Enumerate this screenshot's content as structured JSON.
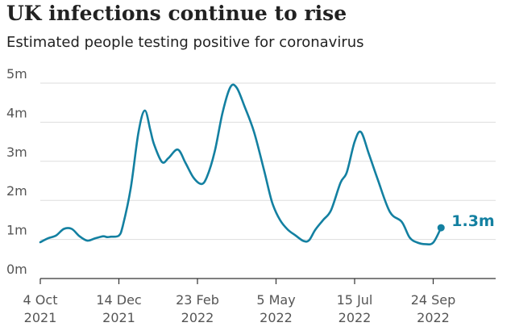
{
  "header": {
    "title": "UK infections continue to rise",
    "subtitle": "Estimated people testing positive for coronavirus"
  },
  "chart_data": {
    "type": "line",
    "title": "UK infections continue to rise",
    "subtitle": "Estimated people testing positive for coronavirus",
    "xlabel": "",
    "ylabel": "",
    "unit": "million people",
    "ylim": [
      0,
      5
    ],
    "grid": true,
    "y_ticks": [
      {
        "value": 0,
        "label": "0m"
      },
      {
        "value": 1,
        "label": "1m"
      },
      {
        "value": 2,
        "label": "2m"
      },
      {
        "value": 3,
        "label": "3m"
      },
      {
        "value": 4,
        "label": "4m"
      },
      {
        "value": 5,
        "label": "5m"
      }
    ],
    "x_ticks": [
      {
        "week": 0,
        "label_line1": "4 Oct",
        "label_line2": "2021"
      },
      {
        "week": 10,
        "label_line1": "14 Dec",
        "label_line2": "2021"
      },
      {
        "week": 20,
        "label_line1": "23 Feb",
        "label_line2": "2022"
      },
      {
        "week": 30,
        "label_line1": "5 May",
        "label_line2": "2022"
      },
      {
        "week": 40,
        "label_line1": "15 Jul",
        "label_line2": "2022"
      },
      {
        "week": 50,
        "label_line1": "24 Sep",
        "label_line2": "2022"
      }
    ],
    "x_range_weeks": [
      0,
      58
    ],
    "color": "#1380a1",
    "series": [
      {
        "name": "Estimated people testing positive",
        "points": [
          [
            0,
            0.93
          ],
          [
            1,
            1.03
          ],
          [
            2,
            1.1
          ],
          [
            3,
            1.27
          ],
          [
            4,
            1.27
          ],
          [
            5,
            1.08
          ],
          [
            6,
            0.97
          ],
          [
            7,
            1.03
          ],
          [
            8,
            1.08
          ],
          [
            8.5,
            1.06
          ],
          [
            9,
            1.07
          ],
          [
            10,
            1.1
          ],
          [
            10.5,
            1.35
          ],
          [
            11.5,
            2.3
          ],
          [
            12.5,
            3.75
          ],
          [
            13.3,
            4.3
          ],
          [
            14,
            3.8
          ],
          [
            14.5,
            3.42
          ],
          [
            15.5,
            2.98
          ],
          [
            16.3,
            3.08
          ],
          [
            17.5,
            3.3
          ],
          [
            18.5,
            2.95
          ],
          [
            19.5,
            2.58
          ],
          [
            20.5,
            2.42
          ],
          [
            21.2,
            2.6
          ],
          [
            22.2,
            3.25
          ],
          [
            23.2,
            4.25
          ],
          [
            24.2,
            4.9
          ],
          [
            25,
            4.88
          ],
          [
            26,
            4.4
          ],
          [
            27.2,
            3.75
          ],
          [
            28.5,
            2.75
          ],
          [
            29.5,
            1.95
          ],
          [
            30.5,
            1.5
          ],
          [
            31.5,
            1.25
          ],
          [
            32.5,
            1.1
          ],
          [
            33.5,
            0.96
          ],
          [
            34.2,
            0.98
          ],
          [
            35,
            1.25
          ],
          [
            36,
            1.5
          ],
          [
            37,
            1.75
          ],
          [
            38.2,
            2.45
          ],
          [
            39,
            2.72
          ],
          [
            40,
            3.5
          ],
          [
            40.8,
            3.75
          ],
          [
            41.8,
            3.2
          ],
          [
            43,
            2.5
          ],
          [
            44.5,
            1.7
          ],
          [
            46,
            1.45
          ],
          [
            47,
            1.05
          ],
          [
            48,
            0.92
          ],
          [
            49,
            0.88
          ],
          [
            50,
            0.92
          ],
          [
            51,
            1.3
          ]
        ]
      }
    ],
    "end_label": "1.3m"
  }
}
